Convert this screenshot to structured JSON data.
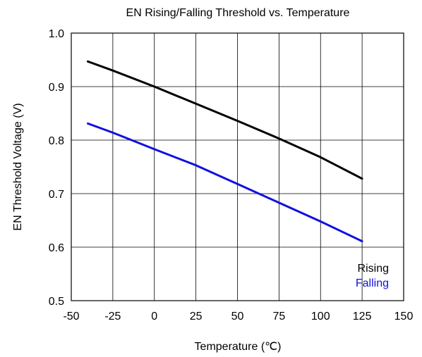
{
  "chart_data": {
    "type": "line",
    "title": "EN Rising/Falling Threshold vs. Temperature",
    "xlabel": "Temperature (℃)",
    "ylabel": "EN Threshold Voltage (V)",
    "xlim": [
      -50,
      150
    ],
    "ylim": [
      0.5,
      1.0
    ],
    "xticks": [
      -50,
      -25,
      0,
      25,
      50,
      75,
      100,
      125,
      150
    ],
    "yticks": [
      0.5,
      0.6,
      0.7,
      0.8,
      0.9,
      1.0
    ],
    "xtick_labels": [
      "-50",
      "-25",
      "0",
      "25",
      "50",
      "75",
      "100",
      "125",
      "150"
    ],
    "ytick_labels": [
      "0.5",
      "0.6",
      "0.7",
      "0.8",
      "0.9",
      "1.0"
    ],
    "grid": true,
    "legend_position": "bottom-right",
    "series": [
      {
        "name": "Rising",
        "color": "#000000",
        "x": [
          -40,
          -25,
          0,
          25,
          50,
          75,
          100,
          125
        ],
        "y": [
          0.947,
          0.93,
          0.9,
          0.868,
          0.836,
          0.803,
          0.768,
          0.728
        ]
      },
      {
        "name": "Falling",
        "color": "#1010e0",
        "x": [
          -40,
          -25,
          0,
          25,
          50,
          75,
          100,
          125
        ],
        "y": [
          0.831,
          0.814,
          0.783,
          0.753,
          0.718,
          0.683,
          0.648,
          0.611
        ]
      }
    ]
  }
}
